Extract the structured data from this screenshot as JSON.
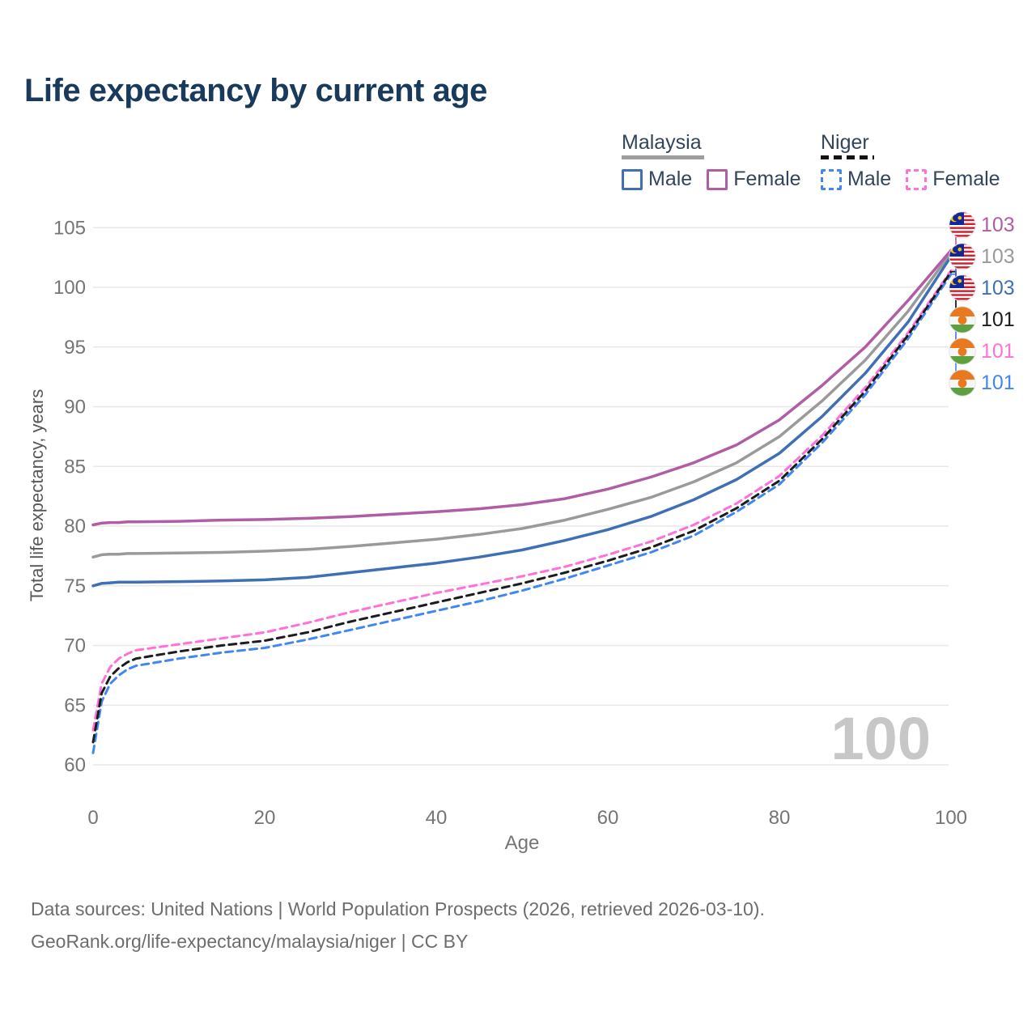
{
  "page_title": "Life expectancy by current age",
  "legend": {
    "groups": [
      {
        "name": "Malaysia",
        "line_style": "solid",
        "underline_color": "#9e9e9e",
        "items": [
          {
            "label": "Male",
            "color": "#3f6fb5"
          },
          {
            "label": "Female",
            "color": "#b15da5"
          }
        ]
      },
      {
        "name": "Niger",
        "line_style": "dashed",
        "underline_color": "#151515",
        "items": [
          {
            "label": "Male",
            "color": "#4187f0"
          },
          {
            "label": "Female",
            "color": "#ff70d8"
          }
        ]
      }
    ]
  },
  "chart_data": {
    "type": "line",
    "title": "Life expectancy by current age",
    "xlabel": "Age",
    "ylabel": "Total life expectancy, years",
    "xlim": [
      0,
      100
    ],
    "ylim": [
      60,
      105
    ],
    "x_ticks": [
      0,
      20,
      40,
      60,
      80,
      100
    ],
    "y_ticks": [
      60,
      65,
      70,
      75,
      80,
      85,
      90,
      95,
      100,
      105
    ],
    "grid": true,
    "grid_color": "#e8e8e8",
    "tick_color": "#757575",
    "watermark": "100",
    "watermark_color": "#c7c7c7",
    "legend_position": "top-right",
    "ages": [
      0,
      1,
      2,
      3,
      4,
      5,
      10,
      15,
      20,
      25,
      30,
      35,
      40,
      45,
      50,
      55,
      60,
      65,
      70,
      75,
      80,
      85,
      90,
      95,
      100
    ],
    "series": [
      {
        "name": "Niger Female",
        "country": "niger",
        "sex": "female",
        "color": "#ff70d8",
        "dash": "9 6",
        "width": 3,
        "row": 4,
        "values": [
          62.9,
          66.8,
          68.2,
          68.9,
          69.3,
          69.6,
          70.1,
          70.6,
          71.1,
          71.9,
          72.8,
          73.6,
          74.4,
          75.1,
          75.8,
          76.6,
          77.6,
          78.7,
          80.1,
          81.9,
          84.2,
          87.6,
          91.6,
          96.2,
          101.4
        ]
      },
      {
        "name": "Niger Male",
        "country": "niger",
        "sex": "male",
        "color": "#4187f0",
        "dash": "9 6",
        "width": 3,
        "row": 5,
        "values": [
          61.0,
          65.3,
          66.8,
          67.5,
          68.0,
          68.3,
          68.9,
          69.4,
          69.8,
          70.5,
          71.3,
          72.1,
          72.9,
          73.7,
          74.6,
          75.6,
          76.7,
          77.8,
          79.2,
          81.2,
          83.5,
          87.0,
          91.0,
          95.7,
          101.1
        ]
      },
      {
        "name": "Niger",
        "country": "niger",
        "sex": "both",
        "color": "#1c1c1c",
        "dash": "9 6",
        "width": 3,
        "row": 3,
        "values": [
          61.9,
          66.0,
          67.4,
          68.1,
          68.6,
          68.9,
          69.5,
          70.0,
          70.4,
          71.1,
          72.0,
          72.8,
          73.6,
          74.4,
          75.2,
          76.1,
          77.1,
          78.2,
          79.6,
          81.5,
          83.8,
          87.3,
          91.3,
          96.0,
          101.3
        ]
      },
      {
        "name": "Malaysia",
        "country": "malaysia",
        "sex": "both",
        "color": "#9a9a9a",
        "dash": "",
        "width": 3.5,
        "row": 1,
        "values": [
          77.4,
          77.6,
          77.65,
          77.65,
          77.7,
          77.7,
          77.75,
          77.8,
          77.9,
          78.05,
          78.3,
          78.6,
          78.9,
          79.3,
          79.8,
          80.5,
          81.4,
          82.4,
          83.7,
          85.3,
          87.5,
          90.5,
          93.9,
          98.0,
          102.9
        ]
      },
      {
        "name": "Malaysia Male",
        "country": "malaysia",
        "sex": "male",
        "color": "#3f6fb5",
        "dash": "",
        "width": 3.5,
        "row": 2,
        "values": [
          75.0,
          75.2,
          75.25,
          75.3,
          75.3,
          75.3,
          75.35,
          75.4,
          75.5,
          75.7,
          76.1,
          76.5,
          76.9,
          77.4,
          78.0,
          78.8,
          79.7,
          80.8,
          82.2,
          83.9,
          86.1,
          89.2,
          92.8,
          97.1,
          102.6
        ]
      },
      {
        "name": "Malaysia Female",
        "country": "malaysia",
        "sex": "female",
        "color": "#b15da5",
        "dash": "",
        "width": 3.5,
        "row": 0,
        "values": [
          80.1,
          80.25,
          80.3,
          80.3,
          80.35,
          80.35,
          80.4,
          80.5,
          80.55,
          80.65,
          80.8,
          81.0,
          81.2,
          81.45,
          81.8,
          82.3,
          83.1,
          84.1,
          85.3,
          86.8,
          88.9,
          91.8,
          95.0,
          98.9,
          103.1
        ]
      }
    ],
    "end_labels": [
      {
        "value": "103",
        "country": "malaysia",
        "color": "#b15da5"
      },
      {
        "value": "103",
        "country": "malaysia",
        "color": "#9a9a9a"
      },
      {
        "value": "103",
        "country": "malaysia",
        "color": "#3f6fb5"
      },
      {
        "value": "101",
        "country": "niger",
        "color": "#1c1c1c"
      },
      {
        "value": "101",
        "country": "niger",
        "color": "#ff70d8"
      },
      {
        "value": "101",
        "country": "niger",
        "color": "#4187f0"
      }
    ]
  },
  "footer": {
    "line1": "Data sources: United Nations | World Population Prospects (2026, retrieved 2026-03-10).",
    "line2": "GeoRank.org/life-expectancy/malaysia/niger | CC BY"
  }
}
